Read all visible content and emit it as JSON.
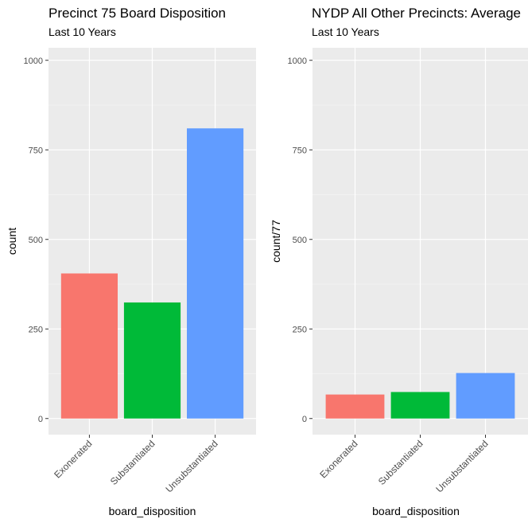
{
  "chart_data": [
    {
      "type": "bar",
      "title": "Precinct 75 Board Disposition",
      "subtitle": "Last 10 Years",
      "xlabel": "board_disposition",
      "ylabel": "count",
      "categories": [
        "Exonerated",
        "Substantiated",
        "Unsubstantiated"
      ],
      "values": [
        405,
        324,
        810
      ],
      "colors": [
        "#F8766D",
        "#00BA38",
        "#619CFF"
      ],
      "ylim": [
        -45,
        1035
      ],
      "yticks": [
        0,
        250,
        500,
        750,
        1000
      ],
      "ytick_labels": [
        "0",
        "250",
        "500",
        "750",
        "1000"
      ],
      "grid": true,
      "panel_background": "#EBEBEB"
    },
    {
      "type": "bar",
      "title": "NYDP All Other Precincts: Average",
      "subtitle": "Last 10 Years",
      "xlabel": "board_disposition",
      "ylabel": "count/77",
      "categories": [
        "Exonerated",
        "Substantiated",
        "Unsubstantiated"
      ],
      "values": [
        67,
        74,
        127
      ],
      "colors": [
        "#F8766D",
        "#00BA38",
        "#619CFF"
      ],
      "ylim": [
        -45,
        1035
      ],
      "yticks": [
        0,
        250,
        500,
        750,
        1000
      ],
      "ytick_labels": [
        "0",
        "250",
        "500",
        "750",
        "1000"
      ],
      "grid": true,
      "panel_background": "#EBEBEB"
    }
  ]
}
